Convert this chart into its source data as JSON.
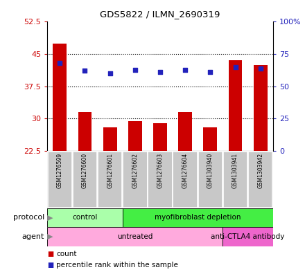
{
  "title": "GDS5822 / ILMN_2690319",
  "samples": [
    "GSM1276599",
    "GSM1276600",
    "GSM1276601",
    "GSM1276602",
    "GSM1276603",
    "GSM1276604",
    "GSM1303940",
    "GSM1303941",
    "GSM1303942"
  ],
  "counts": [
    47.5,
    31.5,
    28.0,
    29.5,
    29.0,
    31.5,
    28.0,
    43.5,
    42.5
  ],
  "percentiles": [
    68,
    62,
    60,
    63,
    61,
    63,
    61,
    65,
    64
  ],
  "ylim_left": [
    22.5,
    52.5
  ],
  "ylim_right": [
    0,
    100
  ],
  "yticks_left": [
    22.5,
    30.0,
    37.5,
    45.0,
    52.5
  ],
  "ytick_left_labels": [
    "22.5",
    "30",
    "37.5",
    "45",
    "52.5"
  ],
  "yticks_right": [
    0,
    25,
    50,
    75,
    100
  ],
  "ytick_right_labels": [
    "0",
    "25",
    "50",
    "75",
    "100%"
  ],
  "protocol_groups": [
    {
      "label": "control",
      "start": 0,
      "end": 3,
      "color": "#aaffaa"
    },
    {
      "label": "myofibroblast depletion",
      "start": 3,
      "end": 9,
      "color": "#44ee44"
    }
  ],
  "agent_groups": [
    {
      "label": "untreated",
      "start": 0,
      "end": 7,
      "color": "#ffaadd"
    },
    {
      "label": "anti-CTLA4 antibody",
      "start": 7,
      "end": 9,
      "color": "#ee66cc"
    }
  ],
  "bar_color": "#CC0000",
  "dot_color": "#2222BB",
  "left_tick_color": "#CC0000",
  "right_tick_color": "#2222BB",
  "cell_bg": "#C8C8C8",
  "cell_border": "#FFFFFF",
  "plot_bg": "#FFFFFF",
  "fig_bg": "#FFFFFF"
}
